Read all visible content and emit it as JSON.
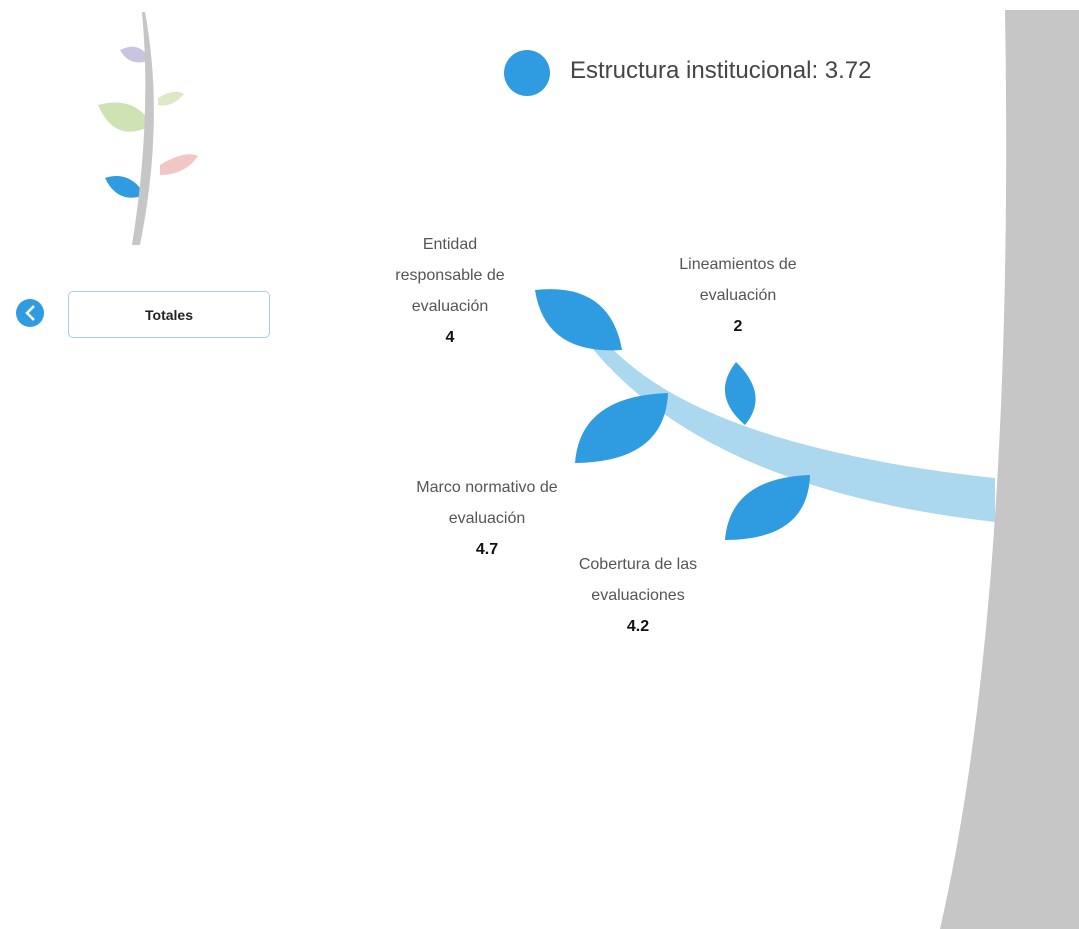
{
  "header": {
    "title": "Estructura institucional: 3.72"
  },
  "nav": {
    "button": "Totales"
  },
  "items": [
    {
      "label": "Entidad responsable de evaluación",
      "value": 4
    },
    {
      "label": "Lineamientos de evaluación",
      "value": 2
    },
    {
      "label": "Marco normativo de evaluación",
      "value": 4.7
    },
    {
      "label": "Cobertura de las evaluaciones",
      "value": 4.2
    }
  ]
}
